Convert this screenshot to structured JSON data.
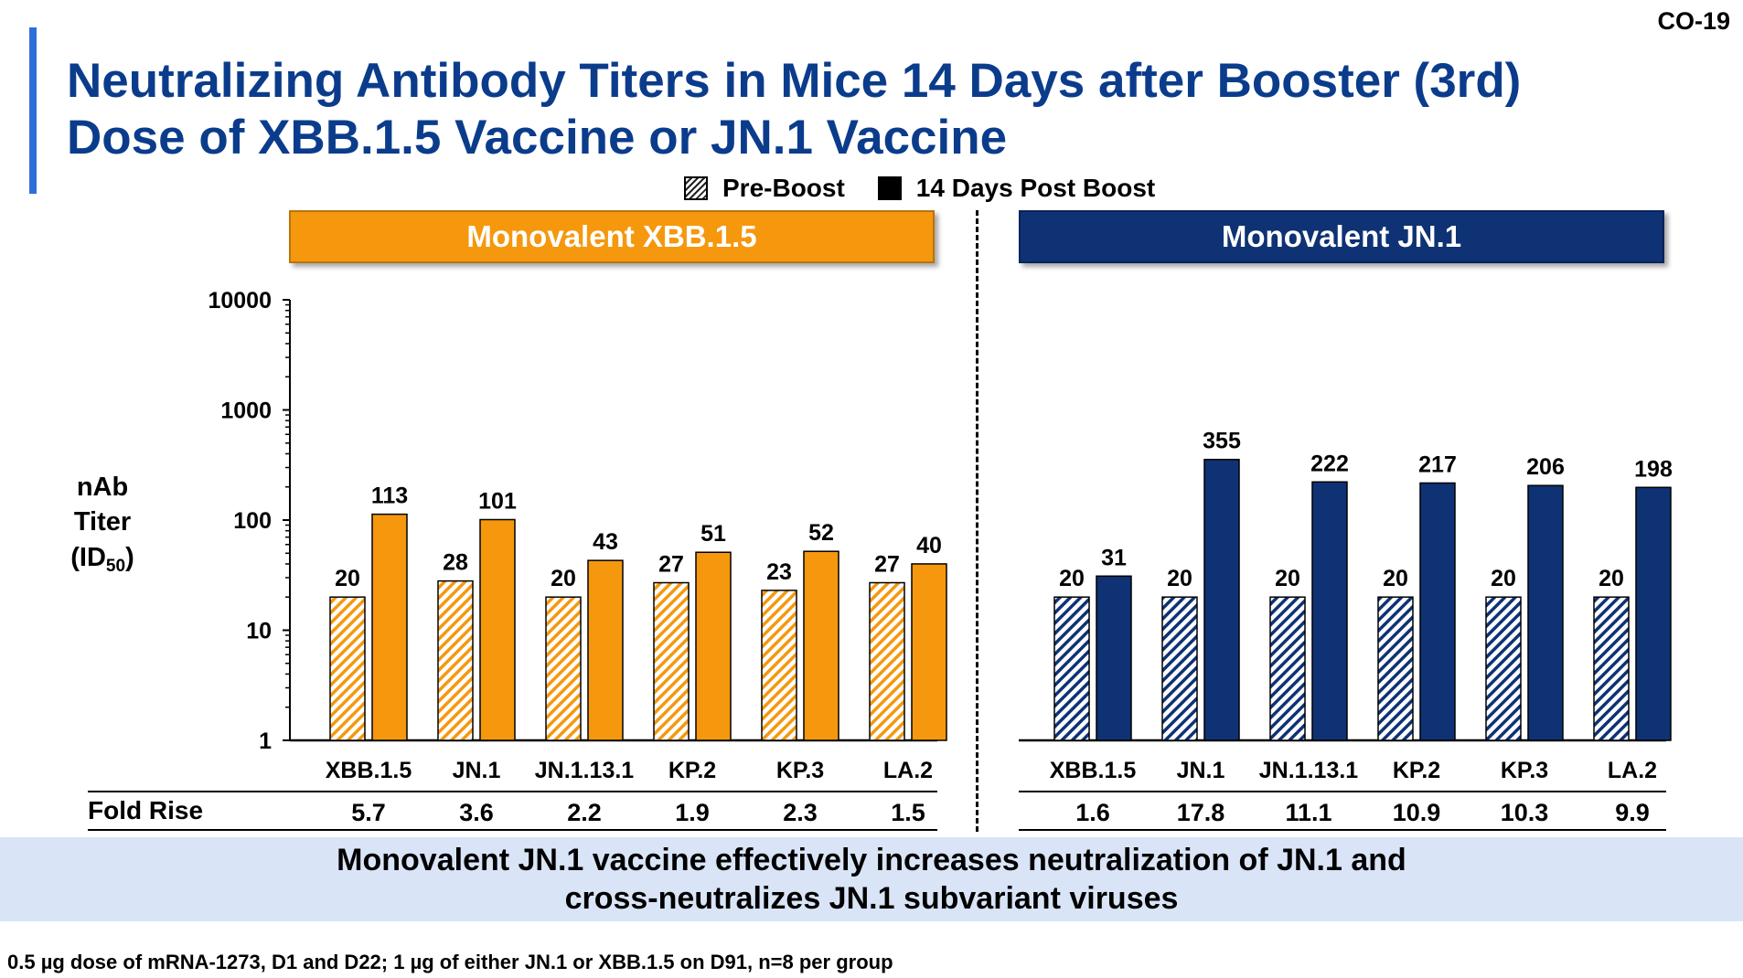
{
  "slide_number": "CO-19",
  "title": {
    "line1": "Neutralizing Antibody Titers in Mice 14 Days after Booster (3rd)",
    "line2": "Dose of XBB.1.5 Vaccine or JN.1 Vaccine"
  },
  "legend": {
    "pre": "Pre-Boost",
    "post": "14 Days Post Boost"
  },
  "colors": {
    "xbb_orange": "#f5980e",
    "jn1_navy": "#0e3274",
    "title_blue": "#0b3c8c",
    "accent_bar": "#2f6fd8",
    "takeaway_bg": "#d9e4f7"
  },
  "y_axis": {
    "label_line1": "nAb",
    "label_line2": "Titer",
    "label_line3_main": "(ID",
    "label_line3_sub": "50",
    "label_line3_end": ")"
  },
  "fold_rise_label": "Fold Rise",
  "chart_data": [
    {
      "type": "bar",
      "title": "Monovalent XBB.1.5",
      "yscale": "log",
      "ylim": [
        1,
        10000
      ],
      "yticks": [
        "1",
        "10",
        "100",
        "1000",
        "10000"
      ],
      "categories": [
        "XBB.1.5",
        "JN.1",
        "JN.1.13.1",
        "KP.2",
        "KP.3",
        "LA.2"
      ],
      "series": [
        {
          "name": "Pre-Boost",
          "values": [
            20,
            28,
            20,
            27,
            23,
            27
          ]
        },
        {
          "name": "14 Days Post Boost",
          "values": [
            113,
            101,
            43,
            51,
            52,
            40
          ]
        }
      ],
      "fold_rise": [
        "5.7",
        "3.6",
        "2.2",
        "1.9",
        "2.3",
        "1.5"
      ]
    },
    {
      "type": "bar",
      "title": "Monovalent JN.1",
      "yscale": "log",
      "ylim": [
        1,
        10000
      ],
      "categories": [
        "XBB.1.5",
        "JN.1",
        "JN.1.13.1",
        "KP.2",
        "KP.3",
        "LA.2"
      ],
      "series": [
        {
          "name": "Pre-Boost",
          "values": [
            20,
            20,
            20,
            20,
            20,
            20
          ]
        },
        {
          "name": "14 Days Post Boost",
          "values": [
            31,
            355,
            222,
            217,
            206,
            198
          ]
        }
      ],
      "fold_rise": [
        "1.6",
        "17.8",
        "11.1",
        "10.9",
        "10.3",
        "9.9"
      ]
    }
  ],
  "takeaway": {
    "line1": "Monovalent JN.1 vaccine effectively increases neutralization of JN.1 and",
    "line2": "cross-neutralizes JN.1 subvariant viruses"
  },
  "footnote": "0.5 µg dose of mRNA-1273, D1 and D22; 1 µg of either JN.1 or XBB.1.5 on D91, n=8 per group"
}
